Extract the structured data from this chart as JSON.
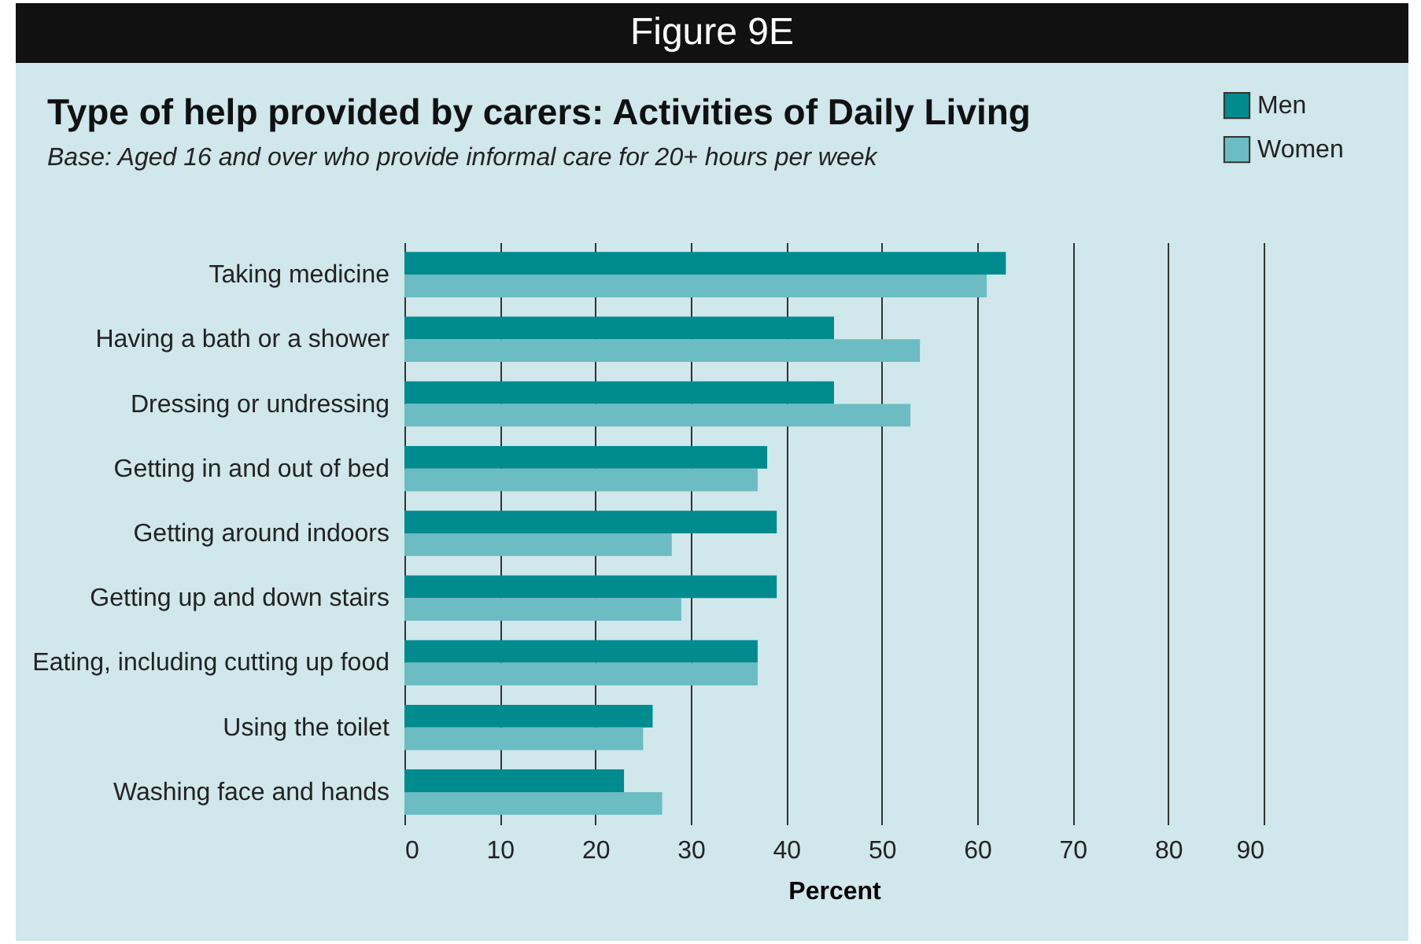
{
  "chart_data": {
    "type": "bar",
    "orientation": "horizontal",
    "title": "Type of help provided by carers: Activities of Daily Living",
    "subtitle": "Base: Aged 16 and over who provide informal care for 20+ hours per week",
    "annotations": [
      "Figure 9E"
    ],
    "xlabel": "Percent",
    "categories": [
      "Taking medicine",
      "Having a bath or a shower",
      "Dressing or undressing",
      "Getting in and out of bed",
      "Getting around indoors",
      "Getting up and down stairs",
      "Eating, including cutting up food",
      "Using the toilet",
      "Washing face and hands"
    ],
    "series": [
      {
        "name": "Men",
        "color": "#008b8f",
        "values": [
          63,
          45,
          45,
          38,
          39,
          39,
          37,
          26,
          23
        ]
      },
      {
        "name": "Women",
        "color": "#6cbcc4",
        "values": [
          61,
          54,
          53,
          37,
          28,
          29,
          37,
          25,
          27
        ]
      }
    ],
    "xlim": [
      0,
      90
    ],
    "xticks": [
      0,
      10,
      20,
      30,
      40,
      50,
      60,
      70,
      80,
      90
    ],
    "grid": "x",
    "legend": "top right"
  }
}
